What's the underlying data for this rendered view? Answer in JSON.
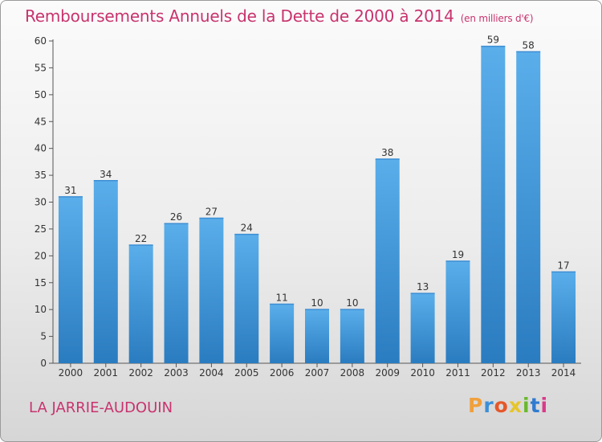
{
  "header": {
    "title": "Remboursements Annuels de la Dette de 2000 à 2014",
    "unit": "(en milliers d'€)"
  },
  "footer": {
    "commune": "LA JARRIE-AUDOUIN",
    "logo": [
      "P",
      "r",
      "o",
      "x",
      "i",
      "t",
      "i"
    ]
  },
  "colors": {
    "bar_top": "#5aaeea",
    "bar_bottom": "#2a7cc0",
    "title": "#c8336e"
  },
  "chart_data": {
    "type": "bar",
    "title": "Remboursements Annuels de la Dette de 2000 à 2014",
    "categories": [
      "2000",
      "2001",
      "2002",
      "2003",
      "2004",
      "2005",
      "2006",
      "2007",
      "2008",
      "2009",
      "2010",
      "2011",
      "2012",
      "2013",
      "2014"
    ],
    "values": [
      31,
      34,
      22,
      26,
      27,
      24,
      11,
      10,
      10,
      38,
      13,
      19,
      59,
      58,
      17
    ],
    "ylim": [
      0,
      60
    ],
    "yticks": [
      0,
      5,
      10,
      15,
      20,
      25,
      30,
      35,
      40,
      45,
      50,
      55,
      60
    ],
    "grid": false,
    "xlabel": "",
    "ylabel": ""
  }
}
